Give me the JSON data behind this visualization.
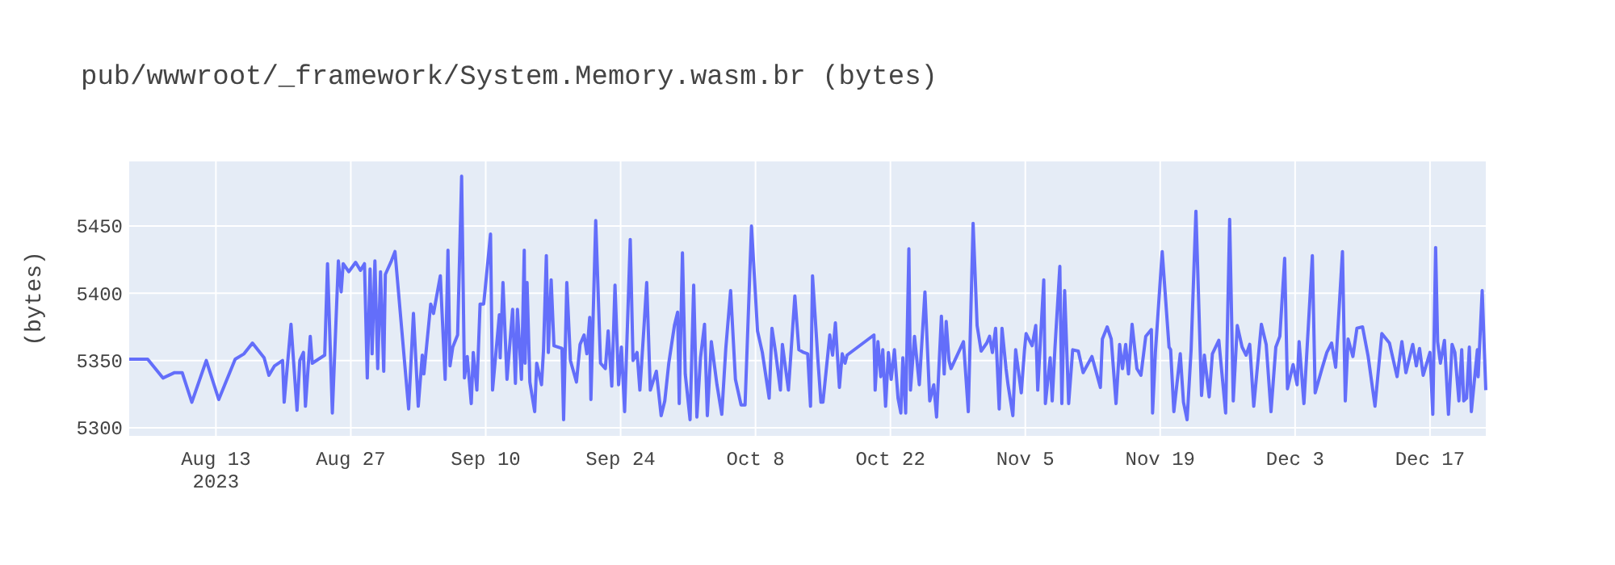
{
  "chart_data": {
    "type": "line",
    "title": "pub/wwwroot/_framework/System.Memory.wasm.br (bytes)",
    "ylabel": "(bytes)",
    "grid": true,
    "xlim": [
      "2023-08-04T00:00",
      "2023-12-22T19:00"
    ],
    "ylim": [
      5294,
      5498
    ],
    "yticks": [
      5300,
      5350,
      5400,
      5450
    ],
    "xticks": [
      {
        "value": "2023-08-13",
        "label": "Aug 13\n2023"
      },
      {
        "value": "2023-08-27",
        "label": "Aug 27"
      },
      {
        "value": "2023-09-10",
        "label": "Sep 10"
      },
      {
        "value": "2023-09-24",
        "label": "Sep 24"
      },
      {
        "value": "2023-10-08",
        "label": "Oct 8"
      },
      {
        "value": "2023-10-22",
        "label": "Oct 22"
      },
      {
        "value": "2023-11-05",
        "label": "Nov 5"
      },
      {
        "value": "2023-11-19",
        "label": "Nov 19"
      },
      {
        "value": "2023-12-03",
        "label": "Dec 3"
      },
      {
        "value": "2023-12-17",
        "label": "Dec 17"
      }
    ],
    "series": [
      {
        "color": "#636efa",
        "x": [
          "2023-08-04T00:00",
          "2023-08-05T22:00",
          "2023-08-07T12:00",
          "2023-08-08T17:00",
          "2023-08-09T12:00",
          "2023-08-10T12:00",
          "2023-08-12T00:00",
          "2023-08-13T07:00",
          "2023-08-15T00:00",
          "2023-08-15T22:00",
          "2023-08-16T19:00",
          "2023-08-18T00:00",
          "2023-08-18T12:00",
          "2023-08-19T02:00",
          "2023-08-19T22:00",
          "2023-08-20T02:00",
          "2023-08-20T19:00",
          "2023-08-21T10:00",
          "2023-08-21T17:00",
          "2023-08-22T02:00",
          "2023-08-22T07:00",
          "2023-08-22T19:00",
          "2023-08-23T00:00",
          "2023-08-24T07:00",
          "2023-08-24T14:00",
          "2023-08-25T02:00",
          "2023-08-25T17:00",
          "2023-08-26T00:00",
          "2023-08-26T05:00",
          "2023-08-26T19:00",
          "2023-08-27T12:00",
          "2023-08-28T00:00",
          "2023-08-28T10:00",
          "2023-08-28T17:00",
          "2023-08-29T00:00",
          "2023-08-29T05:00",
          "2023-08-29T12:00",
          "2023-08-29T19:00",
          "2023-08-30T02:00",
          "2023-08-30T10:00",
          "2023-08-30T14:00",
          "2023-08-31T05:00",
          "2023-08-31T14:00",
          "2023-09-02T00:00",
          "2023-09-02T12:00",
          "2023-09-03T00:00",
          "2023-09-03T10:00",
          "2023-09-03T14:00",
          "2023-09-04T07:00",
          "2023-09-04T14:00",
          "2023-09-05T07:00",
          "2023-09-05T19:00",
          "2023-09-06T02:00",
          "2023-09-06T07:00",
          "2023-09-06T14:00",
          "2023-09-07T02:00",
          "2023-09-07T12:00",
          "2023-09-07T19:00",
          "2023-09-08T02:00",
          "2023-09-08T12:00",
          "2023-09-08T17:00",
          "2023-09-09T02:00",
          "2023-09-09T10:00",
          "2023-09-09T19:00",
          "2023-09-10T12:00",
          "2023-09-10T17:00",
          "2023-09-11T10:00",
          "2023-09-11T12:00",
          "2023-09-11T19:00",
          "2023-09-12T05:00",
          "2023-09-12T19:00",
          "2023-09-13T02:00",
          "2023-09-13T07:00",
          "2023-09-13T17:00",
          "2023-09-14T00:00",
          "2023-09-14T02:00",
          "2023-09-14T07:00",
          "2023-09-14T14:00",
          "2023-09-15T02:00",
          "2023-09-15T07:00",
          "2023-09-15T19:00",
          "2023-09-16T00:00",
          "2023-09-16T07:00",
          "2023-09-16T12:00",
          "2023-09-16T19:00",
          "2023-09-17T02:00",
          "2023-09-17T22:00",
          "2023-09-18T02:00",
          "2023-09-18T10:00",
          "2023-09-18T19:00",
          "2023-09-19T10:00",
          "2023-09-19T19:00",
          "2023-09-20T05:00",
          "2023-09-20T12:00",
          "2023-09-20T19:00",
          "2023-09-20T22:00",
          "2023-09-21T10:00",
          "2023-09-21T22:00",
          "2023-09-22T10:00",
          "2023-09-22T17:00",
          "2023-09-23T02:00",
          "2023-09-23T10:00",
          "2023-09-23T19:00",
          "2023-09-24T02:00",
          "2023-09-24T10:00",
          "2023-09-25T00:00",
          "2023-09-25T07:00",
          "2023-09-25T17:00",
          "2023-09-26T00:00",
          "2023-09-26T10:00",
          "2023-09-26T17:00",
          "2023-09-27T02:00",
          "2023-09-27T17:00",
          "2023-09-28T05:00",
          "2023-09-28T14:00",
          "2023-09-29T00:00",
          "2023-09-29T14:00",
          "2023-09-29T22:00",
          "2023-09-30T02:00",
          "2023-09-30T10:00",
          "2023-09-30T17:00",
          "2023-10-01T05:00",
          "2023-10-01T14:00",
          "2023-10-01T22:00",
          "2023-10-02T07:00",
          "2023-10-02T17:00",
          "2023-10-03T00:00",
          "2023-10-03T10:00",
          "2023-10-04T00:00",
          "2023-10-04T12:00",
          "2023-10-04T22:00",
          "2023-10-05T10:00",
          "2023-10-05T22:00",
          "2023-10-06T12:00",
          "2023-10-06T22:00",
          "2023-10-07T14:00",
          "2023-10-08T05:00",
          "2023-10-08T17:00",
          "2023-10-09T10:00",
          "2023-10-09T17:00",
          "2023-10-10T02:00",
          "2023-10-10T14:00",
          "2023-10-10T19:00",
          "2023-10-11T10:00",
          "2023-10-12T02:00",
          "2023-10-12T12:00",
          "2023-10-13T00:00",
          "2023-10-13T10:00",
          "2023-10-13T17:00",
          "2023-10-13T22:00",
          "2023-10-14T12:00",
          "2023-10-14T19:00",
          "2023-10-15T00:00",
          "2023-10-15T17:00",
          "2023-10-16T00:00",
          "2023-10-16T07:00",
          "2023-10-16T17:00",
          "2023-10-17T00:00",
          "2023-10-17T07:00",
          "2023-10-17T12:00",
          "2023-10-20T07:00",
          "2023-10-20T10:00",
          "2023-10-20T17:00",
          "2023-10-21T00:00",
          "2023-10-21T05:00",
          "2023-10-21T12:00",
          "2023-10-21T19:00",
          "2023-10-22T02:00",
          "2023-10-22T10:00",
          "2023-10-22T19:00",
          "2023-10-23T02:00",
          "2023-10-23T07:00",
          "2023-10-23T14:00",
          "2023-10-23T22:00",
          "2023-10-24T02:00",
          "2023-10-24T12:00",
          "2023-10-25T00:00",
          "2023-10-25T14:00",
          "2023-10-26T02:00",
          "2023-10-26T12:00",
          "2023-10-26T19:00",
          "2023-10-27T07:00",
          "2023-10-27T14:00",
          "2023-10-27T19:00",
          "2023-10-28T02:00",
          "2023-10-28T07:00",
          "2023-10-29T14:00",
          "2023-10-30T02:00",
          "2023-10-30T14:00",
          "2023-10-31T00:00",
          "2023-10-31T10:00",
          "2023-11-01T00:00",
          "2023-11-01T07:00",
          "2023-11-01T14:00",
          "2023-11-01T22:00",
          "2023-11-02T07:00",
          "2023-11-02T14:00",
          "2023-11-03T00:00",
          "2023-11-03T05:00",
          "2023-11-03T17:00",
          "2023-11-04T00:00",
          "2023-11-04T14:00",
          "2023-11-04T22:00",
          "2023-11-05T02:00",
          "2023-11-05T17:00",
          "2023-11-06T02:00",
          "2023-11-06T07:00",
          "2023-11-06T22:00",
          "2023-11-07T02:00",
          "2023-11-07T14:00",
          "2023-11-07T19:00",
          "2023-11-08T02:00",
          "2023-11-08T14:00",
          "2023-11-08T19:00",
          "2023-11-09T02:00",
          "2023-11-09T12:00",
          "2023-11-09T22:00",
          "2023-11-10T12:00",
          "2023-11-11T00:00",
          "2023-11-11T22:00",
          "2023-11-12T19:00",
          "2023-11-13T00:00",
          "2023-11-13T12:00",
          "2023-11-13T22:00",
          "2023-11-14T10:00",
          "2023-11-14T19:00",
          "2023-11-15T02:00",
          "2023-11-15T10:00",
          "2023-11-15T17:00",
          "2023-11-16T02:00",
          "2023-11-16T14:00",
          "2023-11-17T00:00",
          "2023-11-17T12:00",
          "2023-11-18T02:00",
          "2023-11-18T05:00",
          "2023-11-18T12:00",
          "2023-11-19T05:00",
          "2023-11-19T22:00",
          "2023-11-20T02:00",
          "2023-11-20T10:00",
          "2023-11-21T02:00",
          "2023-11-21T10:00",
          "2023-11-21T19:00",
          "2023-11-22T05:00",
          "2023-11-22T17:00",
          "2023-11-23T07:00",
          "2023-11-23T14:00",
          "2023-11-24T02:00",
          "2023-11-24T10:00",
          "2023-11-25T02:00",
          "2023-11-25T19:00",
          "2023-11-26T05:00",
          "2023-11-26T14:00",
          "2023-11-27T00:00",
          "2023-11-27T12:00",
          "2023-11-27T22:00",
          "2023-11-28T07:00",
          "2023-11-28T17:00",
          "2023-11-29T12:00",
          "2023-11-30T00:00",
          "2023-11-30T12:00",
          "2023-12-01T00:00",
          "2023-12-01T10:00",
          "2023-12-01T22:00",
          "2023-12-02T05:00",
          "2023-12-02T19:00",
          "2023-12-03T05:00",
          "2023-12-03T10:00",
          "2023-12-03T22:00",
          "2023-12-04T19:00",
          "2023-12-05T02:00",
          "2023-12-05T19:00",
          "2023-12-06T07:00",
          "2023-12-06T19:00",
          "2023-12-07T05:00",
          "2023-12-07T22:00",
          "2023-12-08T05:00",
          "2023-12-08T12:00",
          "2023-12-09T00:00",
          "2023-12-09T10:00",
          "2023-12-10T00:00",
          "2023-12-10T14:00",
          "2023-12-11T07:00",
          "2023-12-12T00:00",
          "2023-12-12T19:00",
          "2023-12-13T14:00",
          "2023-12-14T02:00",
          "2023-12-14T12:00",
          "2023-12-15T05:00",
          "2023-12-15T14:00",
          "2023-12-15T22:00",
          "2023-12-16T07:00",
          "2023-12-17T00:00",
          "2023-12-17T07:00",
          "2023-12-17T14:00",
          "2023-12-17T19:00",
          "2023-12-18T02:00",
          "2023-12-18T12:00",
          "2023-12-18T22:00",
          "2023-12-19T07:00",
          "2023-12-19T14:00",
          "2023-12-20T00:00",
          "2023-12-20T07:00",
          "2023-12-20T12:00",
          "2023-12-20T19:00",
          "2023-12-21T02:00",
          "2023-12-21T07:00",
          "2023-12-21T22:00",
          "2023-12-22T00:00",
          "2023-12-22T10:00",
          "2023-12-22T19:00"
        ],
        "values": [
          5351,
          5351,
          5337,
          5341,
          5341,
          5319,
          5350,
          5321,
          5351,
          5355,
          5363,
          5352,
          5339,
          5346,
          5350,
          5319,
          5377,
          5313,
          5350,
          5356,
          5316,
          5368,
          5348,
          5354,
          5422,
          5311,
          5424,
          5401,
          5422,
          5416,
          5423,
          5417,
          5422,
          5337,
          5418,
          5355,
          5424,
          5344,
          5416,
          5342,
          5414,
          5424,
          5431,
          5314,
          5385,
          5316,
          5354,
          5340,
          5392,
          5385,
          5413,
          5336,
          5432,
          5346,
          5360,
          5369,
          5487,
          5337,
          5353,
          5318,
          5356,
          5328,
          5392,
          5392,
          5444,
          5328,
          5384,
          5352,
          5408,
          5336,
          5388,
          5333,
          5388,
          5336,
          5432,
          5348,
          5408,
          5334,
          5312,
          5348,
          5332,
          5358,
          5428,
          5356,
          5410,
          5361,
          5359,
          5306,
          5408,
          5350,
          5334,
          5362,
          5369,
          5355,
          5382,
          5321,
          5454,
          5348,
          5344,
          5372,
          5331,
          5406,
          5332,
          5360,
          5312,
          5440,
          5350,
          5356,
          5328,
          5374,
          5408,
          5328,
          5342,
          5309,
          5320,
          5348,
          5376,
          5386,
          5318,
          5430,
          5340,
          5306,
          5406,
          5308,
          5352,
          5377,
          5309,
          5364,
          5332,
          5310,
          5359,
          5402,
          5336,
          5317,
          5317,
          5450,
          5372,
          5356,
          5322,
          5374,
          5356,
          5328,
          5362,
          5328,
          5398,
          5358,
          5356,
          5355,
          5316,
          5413,
          5348,
          5319,
          5319,
          5369,
          5354,
          5378,
          5330,
          5355,
          5348,
          5354,
          5369,
          5328,
          5364,
          5338,
          5358,
          5316,
          5356,
          5336,
          5358,
          5322,
          5311,
          5352,
          5311,
          5433,
          5328,
          5368,
          5332,
          5401,
          5320,
          5332,
          5308,
          5383,
          5340,
          5379,
          5350,
          5344,
          5364,
          5312,
          5452,
          5376,
          5357,
          5363,
          5368,
          5356,
          5374,
          5314,
          5374,
          5344,
          5332,
          5309,
          5358,
          5326,
          5358,
          5370,
          5361,
          5376,
          5328,
          5410,
          5318,
          5352,
          5320,
          5360,
          5420,
          5318,
          5402,
          5318,
          5358,
          5357,
          5341,
          5353,
          5330,
          5366,
          5375,
          5366,
          5318,
          5362,
          5344,
          5362,
          5340,
          5377,
          5344,
          5339,
          5368,
          5373,
          5311,
          5356,
          5431,
          5360,
          5358,
          5312,
          5355,
          5319,
          5306,
          5358,
          5461,
          5324,
          5354,
          5323,
          5355,
          5365,
          5311,
          5455,
          5320,
          5376,
          5360,
          5354,
          5362,
          5316,
          5377,
          5362,
          5312,
          5360,
          5368,
          5426,
          5329,
          5347,
          5332,
          5364,
          5318,
          5428,
          5326,
          5344,
          5356,
          5363,
          5345,
          5431,
          5320,
          5366,
          5353,
          5374,
          5375,
          5353,
          5316,
          5370,
          5363,
          5338,
          5364,
          5341,
          5362,
          5346,
          5359,
          5339,
          5356,
          5310,
          5434,
          5364,
          5348,
          5365,
          5310,
          5362,
          5356,
          5320,
          5358,
          5320,
          5322,
          5360,
          5312,
          5358,
          5338,
          5402,
          5328
        ]
      }
    ]
  }
}
